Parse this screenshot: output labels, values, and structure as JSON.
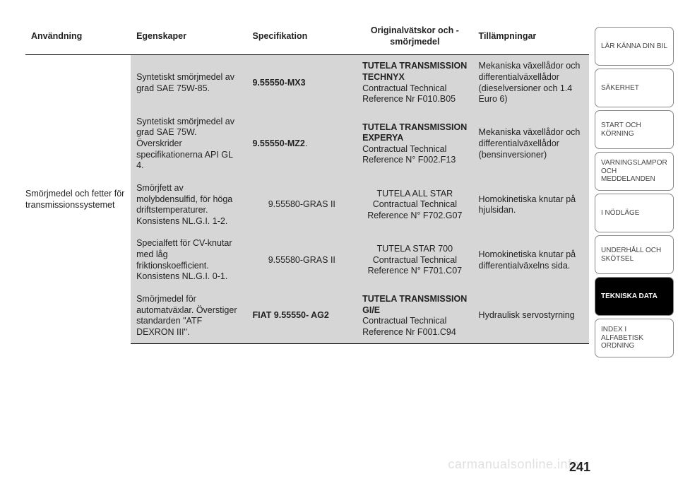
{
  "table": {
    "headers": {
      "c1": "Användning",
      "c2": "Egenskaper",
      "c3": "Specifikation",
      "c4": "Originalvätskor och -smörjmedel",
      "c5": "Tillämpningar"
    },
    "rowLabel": "Smörjmedel och fetter för transmissionssystemet",
    "rows": [
      {
        "c2": "Syntetiskt smörjmedel av grad SAE 75W-85.",
        "c3": "9.55550-MX3",
        "c4_bold": "TUTELA TRANSMISSION TECHNYX",
        "c4_rest": "Contractual Technical Reference Nr F010.B05",
        "c5": "Mekaniska växellådor och differentialväxellådor (dieselversioner och 1.4 Euro 6)"
      },
      {
        "c2": "Syntetiskt smörjmedel av grad SAE 75W. Överskrider specifikationerna API GL 4.",
        "c3_bold": "9.55550-MZ2",
        "c3_rest": ".",
        "c4_bold": "TUTELA TRANSMISSION EXPERYA",
        "c4_rest": "Contractual Technical Reference N° F002.F13",
        "c5": "Mekaniska växellådor och differentialväxellådor (bensinversioner)"
      },
      {
        "c2": "Smörjfett av molybdensulfid, för höga driftstemperaturer. Konsistens NL.G.I. 1-2.",
        "c3": "9.55580-GRAS II",
        "c4": "TUTELA ALL STAR Contractual Technical Reference N° F702.G07",
        "c5": "Homokinetiska knutar på hjulsidan."
      },
      {
        "c2": "Specialfett för CV-knutar med låg friktionskoefficient. Konsistens NL.G.I. 0-1.",
        "c3": "9.55580-GRAS II",
        "c4": "TUTELA STAR 700 Contractual Technical Reference N° F701.C07",
        "c5": "Homokinetiska knutar på differentialväxelns sida."
      },
      {
        "c2": "Smörjmedel för automatväxlar. Överstiger standarden \"ATF DEXRON III\".",
        "c3": "FIAT 9.55550- AG2",
        "c4_bold": "TUTELA TRANSMISSION GI/E",
        "c4_rest": "Contractual Technical Reference Nr F001.C94",
        "c5": "Hydraulisk servostyrning"
      }
    ]
  },
  "sidebar": {
    "items": [
      {
        "label": "LÄR KÄNNA DIN BIL"
      },
      {
        "label": "SÄKERHET"
      },
      {
        "label": "START OCH KÖRNING"
      },
      {
        "label": "VARNINGSLAMPOR OCH MEDDELANDEN"
      },
      {
        "label": "I NÖDLÄGE"
      },
      {
        "label": "UNDERHÅLL OCH SKÖTSEL"
      },
      {
        "label": "TEKNISKA DATA"
      },
      {
        "label": "INDEX I ALFABETISK ORDNING"
      }
    ],
    "activeIndex": 6
  },
  "pageNumber": "241",
  "watermark": "carmanualsonline.info",
  "colors": {
    "grey": "#d6d6d6",
    "text": "#222222",
    "border": "#000000",
    "tabBorder": "#888888",
    "activeBg": "#000000",
    "activeFg": "#ffffff",
    "watermark": "rgba(0,0,0,0.12)"
  }
}
